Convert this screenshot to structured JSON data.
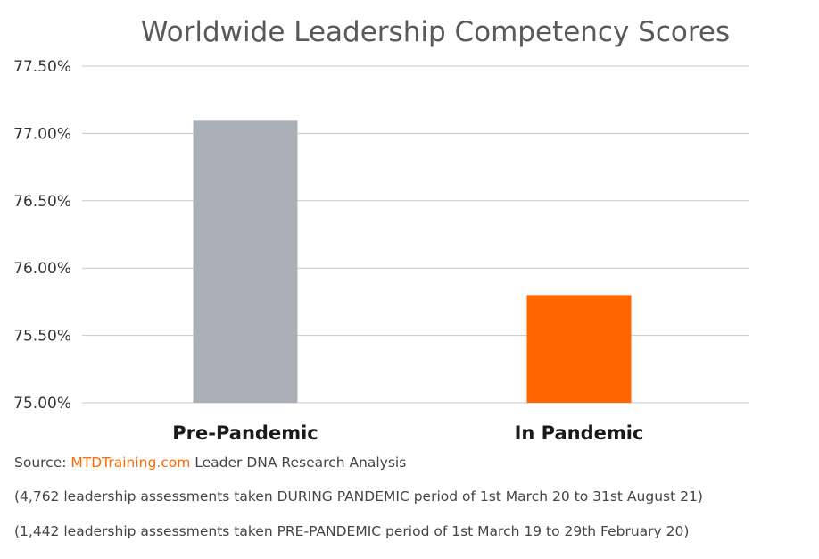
{
  "chart_data": {
    "type": "bar",
    "title": "Worldwide Leadership Competency Scores",
    "categories": [
      "Pre-Pandemic",
      "In Pandemic"
    ],
    "values": [
      77.1,
      75.8
    ],
    "value_unit": "%",
    "ylim": [
      75.0,
      77.5
    ],
    "yticks": [
      75.0,
      75.5,
      76.0,
      76.5,
      77.0,
      77.5
    ],
    "ytick_labels": [
      "75.00%",
      "75.50%",
      "76.00%",
      "76.50%",
      "77.00%",
      "77.50%"
    ],
    "grid": true,
    "colors": [
      "#a9b0b7",
      "#ff6600"
    ],
    "xlabel": "",
    "ylabel": ""
  },
  "footer": {
    "source_prefix": "Source: ",
    "source_link": "MTDTraining.com",
    "source_suffix": " Leader DNA Research Analysis",
    "note_during": "(4,762 leadership assessments taken DURING PANDEMIC period of 1st March 20 to 31st August 21)",
    "note_pre": "(1,442 leadership assessments taken PRE-PANDEMIC period of 1st March 19 to 29th February 20)"
  }
}
